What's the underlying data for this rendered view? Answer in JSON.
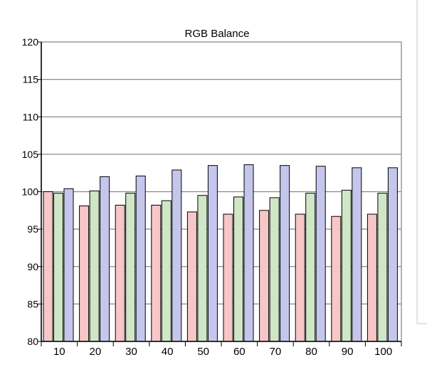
{
  "chart_data": {
    "type": "bar",
    "title": "RGB Balance",
    "xlabel": "",
    "ylabel": "",
    "categories": [
      "10",
      "20",
      "30",
      "40",
      "50",
      "60",
      "70",
      "80",
      "90",
      "100"
    ],
    "series": [
      {
        "color": "#f7c6c7",
        "values": [
          100.0,
          98.1,
          98.2,
          98.2,
          97.3,
          97.0,
          97.5,
          97.0,
          96.7,
          97.0
        ]
      },
      {
        "color": "#cfe6c7",
        "values": [
          99.8,
          100.1,
          99.8,
          98.8,
          99.5,
          99.3,
          99.2,
          99.8,
          100.2,
          99.8
        ]
      },
      {
        "color": "#c5c6ec",
        "values": [
          100.4,
          102.0,
          102.1,
          102.9,
          103.5,
          103.6,
          103.5,
          103.4,
          103.2,
          103.2
        ]
      }
    ],
    "ylim": [
      80,
      120
    ],
    "yticks": [
      120,
      115,
      110,
      105,
      100,
      95,
      90,
      85,
      80
    ],
    "grid": true,
    "legend": "none"
  },
  "colors": {
    "background": "#ffffff",
    "plot_background": "#ffffff",
    "gridline": "#8a8a8a",
    "frame": "#9a9a9a",
    "bar_outline": "#000000",
    "text": "#000000"
  }
}
